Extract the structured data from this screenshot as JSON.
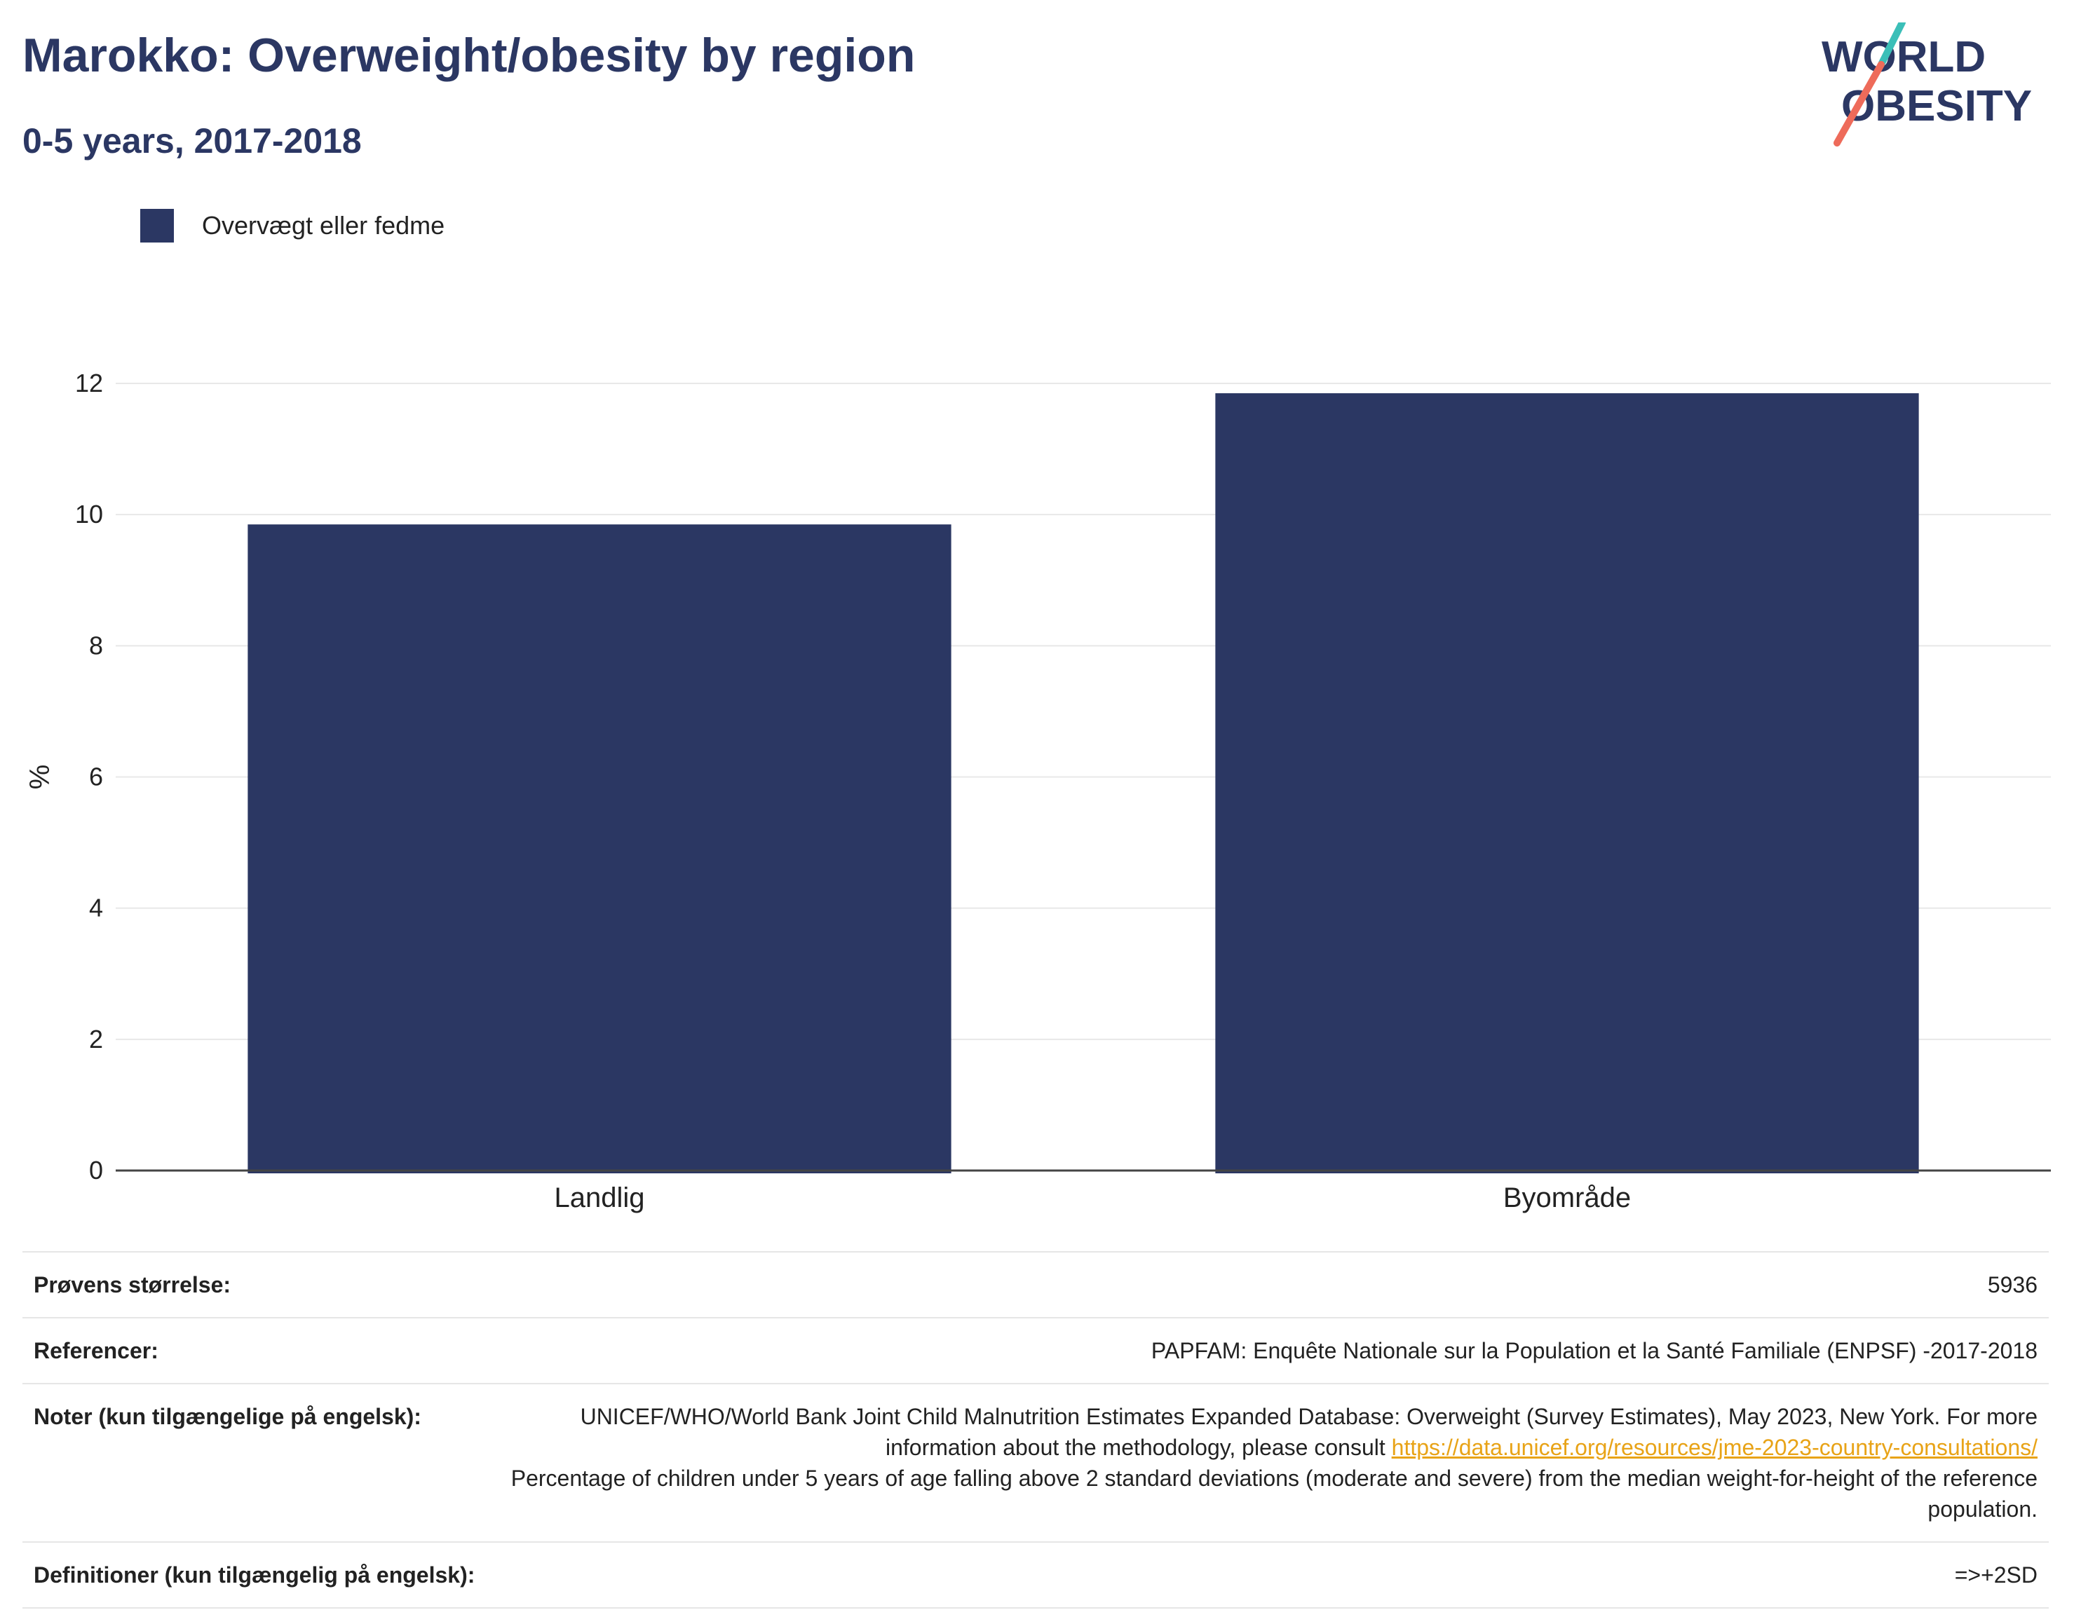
{
  "header": {
    "title": "Marokko: Overweight/obesity by region",
    "subtitle": "0-5 years, 2017-2018"
  },
  "logo": {
    "line1": "WORLD",
    "line2": "OBESITY",
    "text_color": "#2b3763",
    "accent_teal": "#3bbfb8",
    "accent_coral": "#ee6b5a"
  },
  "colors": {
    "bar": "#2b3763",
    "grid": "#e8e8e8",
    "axis": "#444444"
  },
  "chart_data": {
    "type": "bar",
    "categories": [
      "Landlig",
      "Byområde"
    ],
    "series": [
      {
        "name": "Overvægt eller fedme",
        "values": [
          9.85,
          11.85
        ]
      }
    ],
    "ylabel": "%",
    "xlabel": "",
    "ylim": [
      0,
      12
    ],
    "yticks": [
      0,
      2,
      4,
      6,
      8,
      10,
      12
    ],
    "grid": true,
    "legend": "top-left"
  },
  "info": {
    "sample_label": "Prøvens størrelse:",
    "sample_value": "5936",
    "ref_label": "Referencer:",
    "ref_value": "PAPFAM: Enquête Nationale sur la Population et la Santé Familiale (ENPSF) -2017-2018",
    "notes_label": "Noter (kun tilgængelige på engelsk):",
    "notes_text_1": "UNICEF/WHO/World Bank Joint Child Malnutrition Estimates Expanded Database: Overweight (Survey Estimates), May 2023, New York. For more information about the methodology, please consult",
    "notes_link": "https://data.unicef.org/resources/jme-2023-country-consultations/",
    "notes_text_2": "Percentage of children under 5 years of age falling above 2 standard deviations (moderate and severe) from the median weight-for-height of the reference population.",
    "def_label": "Definitioner (kun tilgængelig på engelsk):",
    "def_value": "=>+2SD"
  }
}
